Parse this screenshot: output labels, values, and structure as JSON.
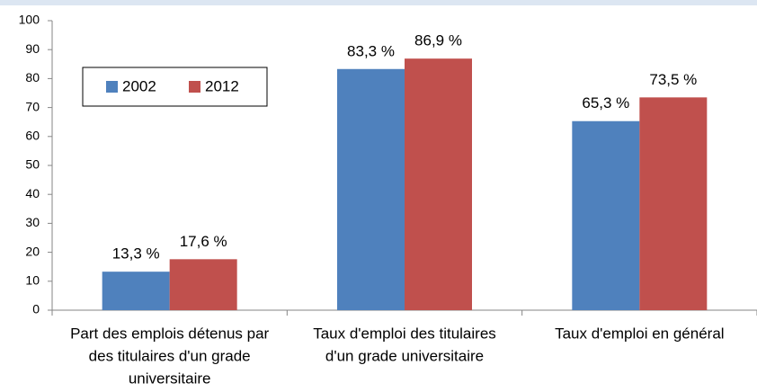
{
  "chart_data": {
    "type": "bar",
    "categories": [
      [
        "Part des emplois détenus par",
        "des titulaires d'un grade",
        "universitaire"
      ],
      [
        "Taux d'emploi des titulaires",
        "d'un grade universitaire"
      ],
      [
        "Taux d'emploi en général"
      ]
    ],
    "series": [
      {
        "name": "2002",
        "color": "#4f81bd",
        "values": [
          13.3,
          83.3,
          65.3
        ],
        "value_labels": [
          "13,3 %",
          "83,3 %",
          "65,3 %"
        ]
      },
      {
        "name": "2012",
        "color": "#c0504d",
        "values": [
          17.6,
          86.9,
          73.5
        ],
        "value_labels": [
          "17,6 %",
          "86,9 %",
          "73,5 %"
        ]
      }
    ],
    "ylim": [
      0,
      100
    ],
    "yticks": [
      0,
      10,
      20,
      30,
      40,
      50,
      60,
      70,
      80,
      90,
      100
    ],
    "legend": "upper left"
  }
}
